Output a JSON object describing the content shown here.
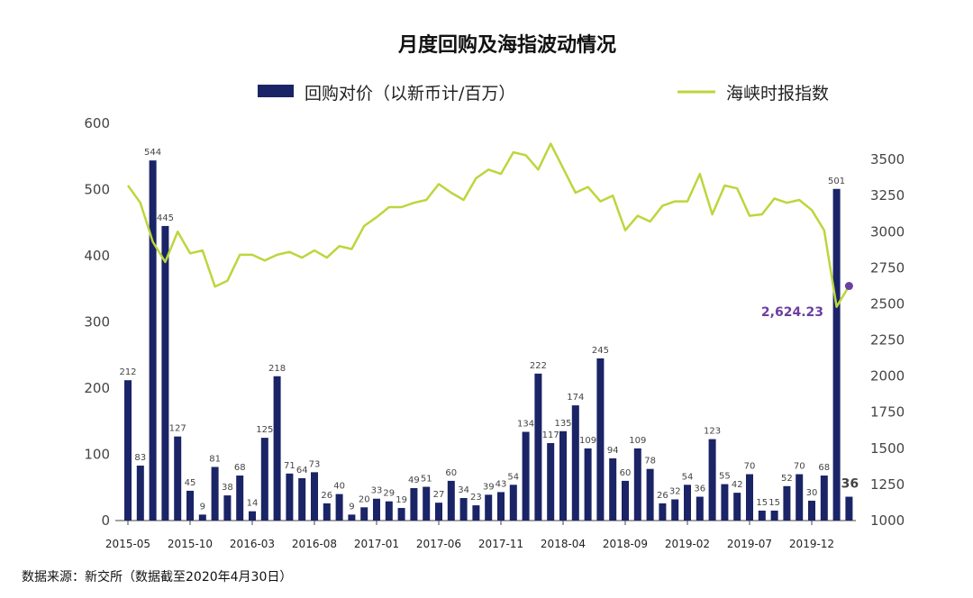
{
  "chart_data": {
    "type": "bar+line",
    "title": "月度回购及海指波动情况",
    "series": [
      {
        "name": "回购对价（以新币计/百万）",
        "type": "bar",
        "color": "#1a2466",
        "axis": "left",
        "values": [
          212,
          83,
          544,
          445,
          127,
          45,
          9,
          81,
          38,
          68,
          14,
          125,
          218,
          71,
          64,
          73,
          26,
          40,
          9,
          20,
          33,
          29,
          19,
          49,
          51,
          27,
          60,
          34,
          23,
          39,
          43,
          54,
          134,
          222,
          117,
          135,
          174,
          109,
          245,
          94,
          60,
          109,
          78,
          26,
          32,
          54,
          36,
          123,
          55,
          42,
          70,
          15,
          15,
          52,
          70,
          30,
          68,
          501,
          36
        ],
        "labels": [
          "212",
          "83",
          "544",
          "445",
          "127",
          "45",
          "9",
          "81",
          "38",
          "68",
          "14",
          "125",
          "218",
          "71",
          "64",
          "73",
          "26",
          "40",
          "9",
          "20",
          "33",
          "29",
          "19",
          "49",
          "51",
          "27",
          "60",
          "34",
          "23",
          "39",
          "43",
          "54",
          "134",
          "222",
          "117",
          "135",
          "174",
          "109",
          "245",
          "94",
          "60",
          "109",
          "78",
          "26",
          "32",
          "54",
          "36",
          "123",
          "55",
          "42",
          "70",
          "15",
          "15",
          "52",
          "70",
          "30",
          "68",
          "501",
          "36"
        ]
      },
      {
        "name": "海峡时报指数",
        "type": "line",
        "color": "#bcd63c",
        "axis": "right",
        "values": [
          3320,
          3200,
          2930,
          2790,
          3000,
          2850,
          2870,
          2620,
          2660,
          2840,
          2840,
          2800,
          2840,
          2860,
          2820,
          2870,
          2820,
          2900,
          2880,
          3040,
          3100,
          3170,
          3170,
          3200,
          3220,
          3330,
          3270,
          3220,
          3370,
          3430,
          3400,
          3550,
          3530,
          3430,
          3610,
          3440,
          3270,
          3310,
          3210,
          3250,
          3010,
          3110,
          3070,
          3180,
          3210,
          3210,
          3400,
          3120,
          3320,
          3300,
          3110,
          3120,
          3230,
          3200,
          3220,
          3150,
          3010,
          2480,
          2624.23
        ]
      }
    ],
    "x_ticks": [
      {
        "index": 0,
        "label": "2015-05"
      },
      {
        "index": 5,
        "label": "2015-10"
      },
      {
        "index": 10,
        "label": "2016-03"
      },
      {
        "index": 15,
        "label": "2016-08"
      },
      {
        "index": 20,
        "label": "2017-01"
      },
      {
        "index": 25,
        "label": "2017-06"
      },
      {
        "index": 30,
        "label": "2017-11"
      },
      {
        "index": 35,
        "label": "2018-04"
      },
      {
        "index": 40,
        "label": "2018-09"
      },
      {
        "index": 45,
        "label": "2019-02"
      },
      {
        "index": 50,
        "label": "2019-07"
      },
      {
        "index": 55,
        "label": "2019-12"
      }
    ],
    "y_left": {
      "min": 0,
      "max": 600,
      "ticks": [
        0,
        100,
        200,
        300,
        400,
        500,
        600
      ]
    },
    "y_right": {
      "min": 1000,
      "max": 3750,
      "ticks": [
        1000,
        1250,
        1500,
        1750,
        2000,
        2250,
        2500,
        2750,
        3000,
        3250,
        3500
      ]
    },
    "annotation": {
      "text": "2,624.23",
      "index": 58,
      "value": 2624.23,
      "marker_color": "#6b3fa0"
    },
    "legend_position": "top",
    "grid": false
  },
  "source_note": "数据来源：新交所（数据截至2020年4月30日）"
}
